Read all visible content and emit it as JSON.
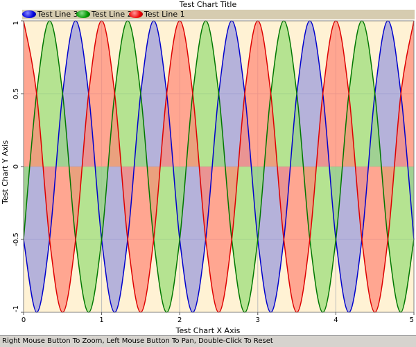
{
  "chart_data": {
    "type": "area",
    "title": "Test Chart Title",
    "xlabel": "Test Chart X Axis",
    "ylabel": "Test Chart Y Axis",
    "xlim": [
      0,
      5
    ],
    "ylim": [
      -1,
      1
    ],
    "x_ticks": [
      "0",
      "1",
      "2",
      "3",
      "4",
      "5"
    ],
    "y_ticks": [
      "-1",
      "-0.5",
      "0",
      "0.5",
      "1"
    ],
    "grid": true,
    "legend_position": "top-left",
    "series": [
      {
        "name": "Test Line 3",
        "color": "#0000cc",
        "fill": "#9999dd",
        "x": [
          0,
          0.1667,
          0.3333,
          0.5,
          0.6667,
          0.8333,
          1,
          1.1667,
          1.3333,
          1.5,
          1.6667,
          1.8333,
          2,
          2.1667,
          2.3333,
          2.5,
          2.6667,
          2.8333,
          3,
          3.1667,
          3.3333,
          3.5,
          3.6667,
          3.8333,
          4,
          4.1667,
          4.3333,
          4.5,
          4.6667,
          4.8333,
          5
        ],
        "y": [
          -0.5,
          -1,
          -0.5,
          0.5,
          1,
          0.5,
          -0.5,
          -1,
          -0.5,
          0.5,
          1,
          0.5,
          -0.5,
          -1,
          -0.5,
          0.5,
          1,
          0.5,
          -0.5,
          -1,
          -0.5,
          0.5,
          1,
          0.5,
          -0.5,
          -1,
          -0.5,
          0.5,
          1,
          0.5,
          -0.5
        ]
      },
      {
        "name": "Test Line 2",
        "color": "#007700",
        "fill": "#99dd77",
        "x": [
          0,
          0.1667,
          0.3333,
          0.5,
          0.6667,
          0.8333,
          1,
          1.1667,
          1.3333,
          1.5,
          1.6667,
          1.8333,
          2,
          2.1667,
          2.3333,
          2.5,
          2.6667,
          2.8333,
          3,
          3.1667,
          3.3333,
          3.5,
          3.6667,
          3.8333,
          4,
          4.1667,
          4.3333,
          4.5,
          4.6667,
          4.8333,
          5
        ],
        "y": [
          -0.5,
          0.5,
          1,
          0.5,
          -0.5,
          -1,
          -0.5,
          0.5,
          1,
          0.5,
          -0.5,
          -1,
          -0.5,
          0.5,
          1,
          0.5,
          -0.5,
          -1,
          -0.5,
          0.5,
          1,
          0.5,
          -0.5,
          -1,
          -0.5,
          0.5,
          1,
          0.5,
          -0.5,
          -1,
          -0.5
        ]
      },
      {
        "name": "Test Line 1",
        "color": "#dd0000",
        "fill": "#ff8877",
        "x": [
          0,
          0.1667,
          0.3333,
          0.5,
          0.6667,
          0.8333,
          1,
          1.1667,
          1.3333,
          1.5,
          1.6667,
          1.8333,
          2,
          2.1667,
          2.3333,
          2.5,
          2.6667,
          2.8333,
          3,
          3.1667,
          3.3333,
          3.5,
          3.6667,
          3.8333,
          4,
          4.1667,
          4.3333,
          4.5,
          4.6667,
          4.8333,
          5
        ],
        "y": [
          1,
          0.5,
          -0.5,
          -1,
          -0.5,
          0.5,
          1,
          0.5,
          -0.5,
          -1,
          -0.5,
          0.5,
          1,
          0.5,
          -0.5,
          -1,
          -0.5,
          0.5,
          1,
          0.5,
          -0.5,
          -1,
          -0.5,
          0.5,
          1,
          0.5,
          -0.5,
          -1,
          -0.5,
          0.5,
          1
        ]
      }
    ]
  },
  "status_bar": {
    "text": "Right Mouse Button To Zoom, Left Mouse Button To Pan, Double-Click To Reset"
  },
  "colors": {
    "plot_background": "#fff2d4",
    "grid": "#bcbcbc",
    "legend_bar": "#d6ccb0",
    "status_bar": "#d6d3ce"
  }
}
